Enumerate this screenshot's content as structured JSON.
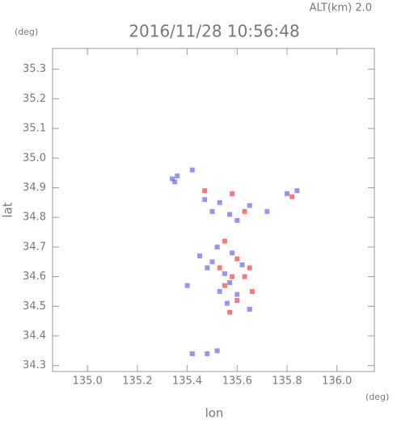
{
  "chart_data": {
    "type": "scatter",
    "title": "2016/11/28 10:56:48",
    "annotation": "ALT(km) 2.0",
    "y_unit": "(deg)",
    "x_unit": "(deg)",
    "xlabel": "lon",
    "ylabel": "lat",
    "xlim": [
      134.86,
      136.15
    ],
    "ylim": [
      34.28,
      35.37
    ],
    "xticks": [
      {
        "value": 135,
        "label": "135.0"
      },
      135.2,
      135.4,
      135.6,
      135.8,
      {
        "value": 136,
        "label": "136.0"
      }
    ],
    "yticks": [
      34.3,
      34.4,
      34.5,
      34.6,
      34.7,
      34.8,
      34.9,
      {
        "value": 35,
        "label": "35.0"
      },
      35.1,
      35.2,
      35.3
    ],
    "series": [
      {
        "color": "#7a7aee",
        "x": [
          135.34,
          135.35,
          135.36,
          135.42,
          135.47,
          135.5,
          135.53,
          135.57,
          135.6,
          135.65,
          135.72,
          135.8,
          135.84,
          135.52,
          135.5,
          135.48,
          135.55,
          135.57,
          135.53,
          135.56,
          135.6,
          135.65,
          135.62,
          135.58,
          135.4,
          135.45,
          135.52,
          135.48,
          135.42
        ],
        "y": [
          34.93,
          34.92,
          34.94,
          34.96,
          34.86,
          34.82,
          34.85,
          34.81,
          34.79,
          34.84,
          34.82,
          34.88,
          34.89,
          34.7,
          34.65,
          34.63,
          34.61,
          34.58,
          34.55,
          34.51,
          34.54,
          34.49,
          34.64,
          34.68,
          34.57,
          34.67,
          34.35,
          34.34,
          34.34
        ]
      },
      {
        "color": "#ee5a5a",
        "x": [
          135.47,
          135.58,
          135.63,
          135.82,
          135.55,
          135.6,
          135.63,
          135.58,
          135.55,
          135.65,
          135.6,
          135.57,
          135.66,
          135.53
        ],
        "y": [
          34.89,
          34.88,
          34.82,
          34.87,
          34.72,
          34.66,
          34.6,
          34.6,
          34.57,
          34.63,
          34.52,
          34.48,
          34.55,
          34.63
        ]
      }
    ]
  }
}
